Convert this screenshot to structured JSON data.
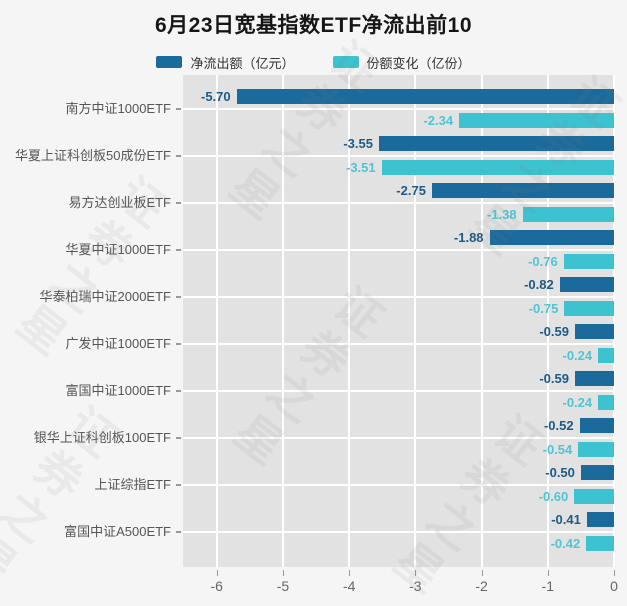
{
  "title": "6月23日宽基指数ETF净流出前10",
  "watermark_text": "证券之星",
  "legend": [
    {
      "label": "净流出额（亿元）",
      "color": "#1a6b9c"
    },
    {
      "label": "份额变化（亿份）",
      "color": "#3dc2cf"
    }
  ],
  "colors": {
    "page_bg": "#f5f5f5",
    "plot_bg": "#e2e2e2",
    "grid": "#ffffff",
    "outflow_bar": "#1a6b9c",
    "share_bar": "#3dc2cf",
    "outflow_value_label": "#1d5a87",
    "share_value_label": "#4fc4d3",
    "axis_text": "#666666",
    "category_text": "#555555"
  },
  "chart_data": {
    "type": "bar",
    "orientation": "horizontal",
    "title": "6月23日宽基指数ETF净流出前10",
    "categories": [
      "南方中证1000ETF",
      "华夏上证科创板50成份ETF",
      "易方达创业板ETF",
      "华夏中证1000ETF",
      "华泰柏瑞中证2000ETF",
      "广发中证1000ETF",
      "富国中证1000ETF",
      "银华上证科创板100ETF",
      "上证综指ETF",
      "富国中证A500ETF"
    ],
    "series": [
      {
        "name": "净流出额（亿元）",
        "color": "#1a6b9c",
        "values": [
          -5.7,
          -3.55,
          -2.75,
          -1.88,
          -0.82,
          -0.59,
          -0.59,
          -0.52,
          -0.5,
          -0.41
        ]
      },
      {
        "name": "份额变化（亿份）",
        "color": "#3dc2cf",
        "values": [
          -2.34,
          -3.51,
          -1.38,
          -0.76,
          -0.75,
          -0.24,
          -0.24,
          -0.54,
          -0.6,
          -0.42
        ]
      }
    ],
    "xlim": [
      -6.51,
      0
    ],
    "xticks": [
      -6,
      -5,
      -4,
      -3,
      -2,
      -1,
      0
    ],
    "xtick_labels": [
      "-6",
      "-5",
      "-4",
      "-3",
      "-2",
      "-1",
      "0"
    ],
    "value_label_decimals": 2,
    "grid": true,
    "legend_position": "top"
  }
}
